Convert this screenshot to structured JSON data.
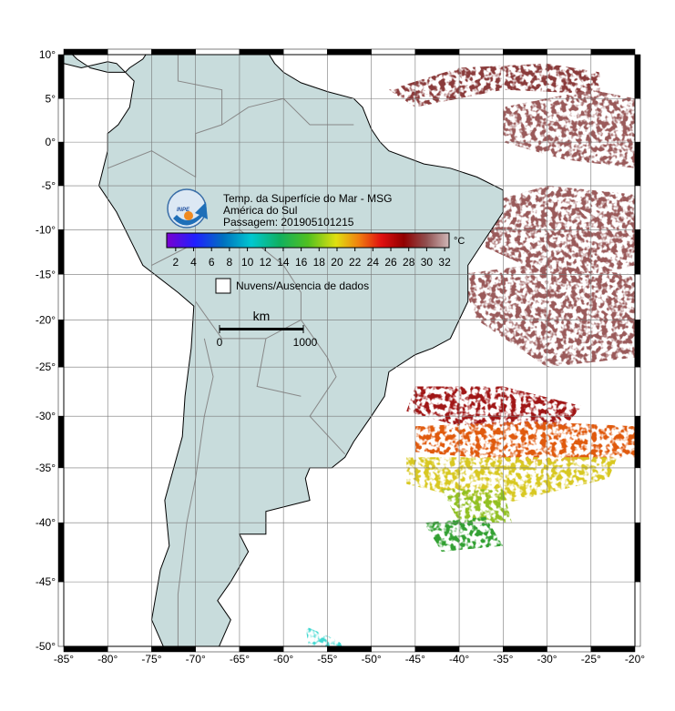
{
  "map": {
    "xlim": [
      -85,
      -20
    ],
    "ylim": [
      -50,
      10
    ],
    "xticks": [
      {
        "value": -85,
        "label": "-85°"
      },
      {
        "value": -80,
        "label": "-80°"
      },
      {
        "value": -75,
        "label": "-75°"
      },
      {
        "value": -70,
        "label": "-70°"
      },
      {
        "value": -65,
        "label": "-65°"
      },
      {
        "value": -60,
        "label": "-60°"
      },
      {
        "value": -55,
        "label": "-55°"
      },
      {
        "value": -50,
        "label": "-50°"
      },
      {
        "value": -45,
        "label": "-45°"
      },
      {
        "value": -40,
        "label": "-40°"
      },
      {
        "value": -35,
        "label": "-35°"
      },
      {
        "value": -30,
        "label": "-30°"
      },
      {
        "value": -25,
        "label": "-25°"
      },
      {
        "value": -20,
        "label": "-20°"
      }
    ],
    "yticks": [
      {
        "value": 10,
        "label": "10°"
      },
      {
        "value": 5,
        "label": "5°"
      },
      {
        "value": 0,
        "label": "0°"
      },
      {
        "value": -5,
        "label": "-5°"
      },
      {
        "value": -10,
        "label": "-10°"
      },
      {
        "value": -15,
        "label": "-15°"
      },
      {
        "value": -20,
        "label": "-20°"
      },
      {
        "value": -25,
        "label": "-25°"
      },
      {
        "value": -30,
        "label": "-30°"
      },
      {
        "value": -35,
        "label": "-35°"
      },
      {
        "value": -40,
        "label": "-40°"
      },
      {
        "value": -45,
        "label": "-45°"
      },
      {
        "value": -50,
        "label": "-50°"
      }
    ],
    "title": [
      "Temp. da Superfície do Mar - MSG",
      "América do Sul",
      "Passagem: 201905101215"
    ],
    "colorbar": {
      "range": [
        1,
        32.5
      ],
      "ticks": [
        2,
        4,
        6,
        8,
        10,
        12,
        14,
        16,
        18,
        20,
        22,
        24,
        26,
        28,
        30,
        32
      ],
      "unit": "°C"
    },
    "legend": "Nuvens/Ausencia de dados",
    "scale": {
      "unit": "km",
      "start": "0",
      "end": "1000"
    }
  }
}
